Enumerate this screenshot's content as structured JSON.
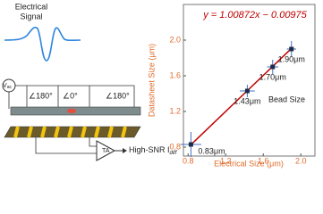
{
  "diagram": {
    "signal_title": [
      "Electrical",
      "Signal"
    ],
    "source": "V",
    "source_sub": "ac",
    "phases": [
      "∠180°",
      "∠0°",
      "∠180°"
    ],
    "amplifier": "TA",
    "output": "High-SNR I",
    "output_sub": "diff"
  },
  "chart_data": {
    "type": "scatter",
    "x_label": "Electrical Size (μm)",
    "y_label": "Datasheet Size (μm)",
    "equation": "y = 1.00872x − 0.00975",
    "annotation": "Bead Size",
    "x": [
      0.83,
      1.43,
      1.7,
      1.9
    ],
    "x_err": [
      0.11,
      0.08,
      0.06,
      0.05
    ],
    "values": [
      0.83,
      1.43,
      1.7,
      1.9
    ],
    "y_err": [
      0.14,
      0.07,
      0.08,
      0.09
    ],
    "value_labels": [
      "0.83μm",
      "1.43μm",
      "1.70μm",
      "1.90μm"
    ],
    "color": "#1f2a44",
    "error_color": "#4472c4",
    "fit_line": {
      "x": [
        0.83,
        1.9
      ],
      "values": [
        0.827,
        1.907
      ],
      "color": "#c00000"
    },
    "xlim": [
      0.75,
      2.15
    ],
    "ylim": [
      0.7,
      2.4
    ],
    "xticks": [
      {
        "value": 0.8,
        "label": "0.8"
      },
      {
        "value": 1.2,
        "label": "1.2"
      },
      {
        "value": 1.6,
        "label": "1.6"
      },
      {
        "value": 2.0,
        "label": "2.0"
      }
    ],
    "yticks": [
      {
        "value": 0.8,
        "label": "0.8"
      },
      {
        "value": 1.2,
        "label": "1.2"
      },
      {
        "value": 1.6,
        "label": "1.6"
      },
      {
        "value": 2.0,
        "label": "2.0"
      }
    ]
  }
}
